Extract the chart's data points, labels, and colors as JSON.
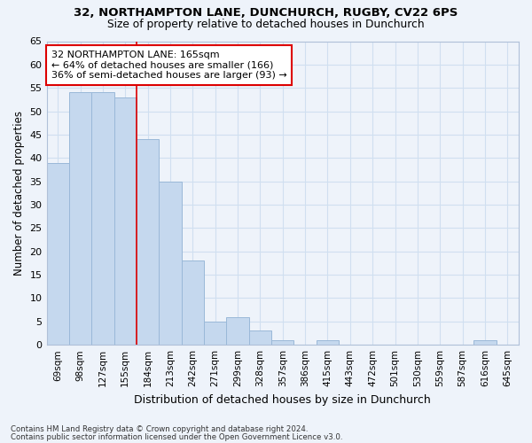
{
  "title1": "32, NORTHAMPTON LANE, DUNCHURCH, RUGBY, CV22 6PS",
  "title2": "Size of property relative to detached houses in Dunchurch",
  "xlabel": "Distribution of detached houses by size in Dunchurch",
  "ylabel": "Number of detached properties",
  "categories": [
    "69sqm",
    "98sqm",
    "127sqm",
    "155sqm",
    "184sqm",
    "213sqm",
    "242sqm",
    "271sqm",
    "299sqm",
    "328sqm",
    "357sqm",
    "386sqm",
    "415sqm",
    "443sqm",
    "472sqm",
    "501sqm",
    "530sqm",
    "559sqm",
    "587sqm",
    "616sqm",
    "645sqm"
  ],
  "values": [
    39,
    54,
    54,
    53,
    44,
    35,
    18,
    5,
    6,
    3,
    1,
    0,
    1,
    0,
    0,
    0,
    0,
    0,
    0,
    1,
    0
  ],
  "bar_color": "#c5d8ee",
  "bar_edge_color": "#9ab8d8",
  "grid_color": "#d0dff0",
  "bg_color": "#eef3fa",
  "vline_x": 3.5,
  "vline_color": "#dd0000",
  "annotation_text": "32 NORTHAMPTON LANE: 165sqm\n← 64% of detached houses are smaller (166)\n36% of semi-detached houses are larger (93) →",
  "annotation_box_color": "#ffffff",
  "annotation_box_edge": "#dd0000",
  "ylim": [
    0,
    65
  ],
  "yticks": [
    0,
    5,
    10,
    15,
    20,
    25,
    30,
    35,
    40,
    45,
    50,
    55,
    60,
    65
  ],
  "footnote1": "Contains HM Land Registry data © Crown copyright and database right 2024.",
  "footnote2": "Contains public sector information licensed under the Open Government Licence v3.0."
}
